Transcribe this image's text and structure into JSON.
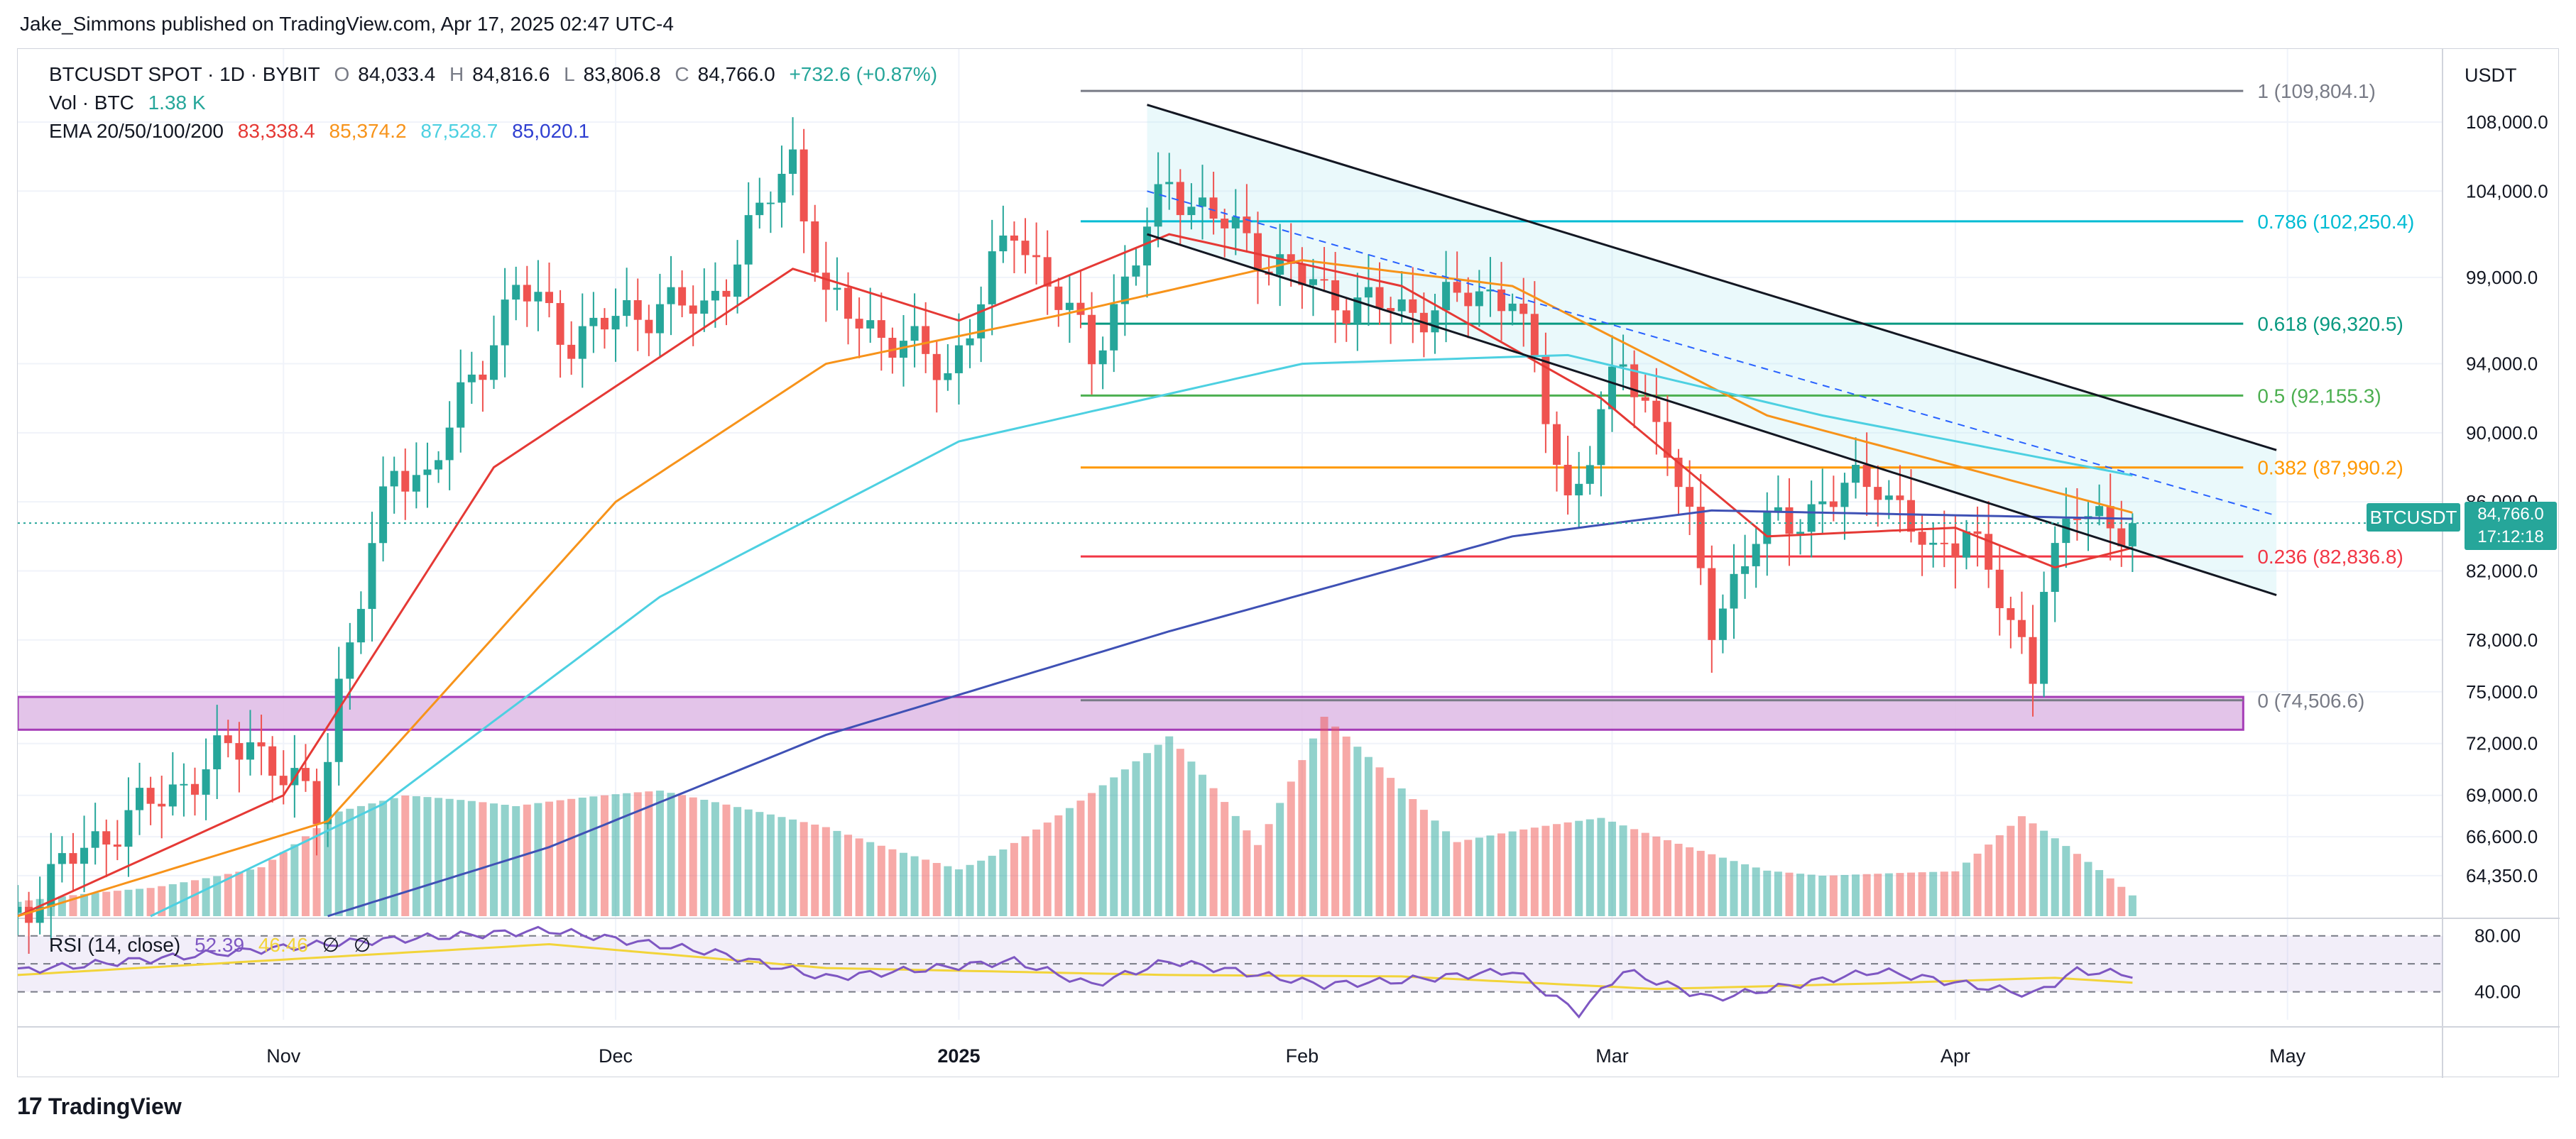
{
  "header": {
    "published": "Jake_Simmons published on TradingView.com, Apr 17, 2025 02:47 UTC-4"
  },
  "legend": {
    "symbol": "BTCUSDT SPOT · 1D · BYBIT",
    "o_label": "O",
    "o": "84,033.4",
    "h_label": "H",
    "h": "84,816.6",
    "l_label": "L",
    "l": "83,806.8",
    "c_label": "C",
    "c": "84,766.0",
    "change": "+732.6 (+0.87%)",
    "vol_label": "Vol · BTC",
    "vol": "1.38 K",
    "ema_label": "EMA 20/50/100/200",
    "ema20": "83,338.4",
    "ema50": "85,374.2",
    "ema100": "87,528.7",
    "ema200": "85,020.1",
    "rsi_label": "RSI (14, close)",
    "rsi": "52.39",
    "rsi_ma": "46.46",
    "rsi_na1": "∅",
    "rsi_na2": "∅"
  },
  "axis": {
    "currency": "USDT"
  },
  "price_badge": {
    "symbol": "BTCUSDT",
    "price": "84,766.0",
    "countdown": "17:12:18"
  },
  "brand": {
    "logo": "17",
    "name": "TradingView"
  },
  "colors": {
    "up": "#26a69a",
    "down": "#ef5350",
    "ema20": "#e53935",
    "ema50": "#f7931a",
    "ema100": "#4dd0e1",
    "ema200": "#3f51b5",
    "rsi": "#7e57c2",
    "rsi_ma": "#f2d43a",
    "zone": "#e1bee7",
    "zone_border": "#9c27b0"
  },
  "chart_data": {
    "type": "candlestick",
    "symbol": "BTCUSDT",
    "interval": "1D",
    "x_range": [
      "2024-10-08",
      "2025-05-15"
    ],
    "y_range": [
      62000,
      111000
    ],
    "y_ticks": [
      64350,
      66600,
      69000,
      72000,
      75000,
      78000,
      82000,
      86000,
      90000,
      94000,
      99000,
      104000,
      108000
    ],
    "y_tick_labels": [
      "64,350.0",
      "66,600.0",
      "69,000.0",
      "72,000.0",
      "75,000.0",
      "78,000.0",
      "82,000.0",
      "86,000.0",
      "90,000.0",
      "94,000.0",
      "99,000.0",
      "104,000.0",
      "108,000.0"
    ],
    "x_ticks": [
      "2024-11-01",
      "2024-12-01",
      "2025-01-01",
      "2025-02-01",
      "2025-03-01",
      "2025-04-01",
      "2025-05-01"
    ],
    "x_tick_labels": [
      "Nov",
      "Dec",
      "2025",
      "Feb",
      "Mar",
      "Apr",
      "May"
    ],
    "price_anchors": [
      [
        "2024-10-08",
        62200
      ],
      [
        "2024-10-14",
        66000
      ],
      [
        "2024-10-20",
        68500
      ],
      [
        "2024-10-29",
        72300
      ],
      [
        "2024-11-04",
        68000
      ],
      [
        "2024-11-06",
        75500
      ],
      [
        "2024-11-11",
        88000
      ],
      [
        "2024-11-14",
        87500
      ],
      [
        "2024-11-22",
        98500
      ],
      [
        "2024-11-27",
        95500
      ],
      [
        "2024-12-05",
        97500
      ],
      [
        "2024-12-09",
        97000
      ],
      [
        "2024-12-17",
        106000
      ],
      [
        "2024-12-20",
        97500
      ],
      [
        "2024-12-26",
        95500
      ],
      [
        "2024-12-31",
        93500
      ],
      [
        "2025-01-06",
        102000
      ],
      [
        "2025-01-13",
        94500
      ],
      [
        "2025-01-20",
        104500
      ],
      [
        "2025-01-27",
        101000
      ],
      [
        "2025-02-03",
        98000
      ],
      [
        "2025-02-10",
        97000
      ],
      [
        "2025-02-20",
        98300
      ],
      [
        "2025-02-25",
        86000
      ],
      [
        "2025-03-02",
        94000
      ],
      [
        "2025-03-06",
        89500
      ],
      [
        "2025-03-10",
        79000
      ],
      [
        "2025-03-14",
        84000
      ],
      [
        "2025-03-25",
        87500
      ],
      [
        "2025-03-30",
        82500
      ],
      [
        "2025-04-02",
        85000
      ],
      [
        "2025-04-06",
        78500
      ],
      [
        "2025-04-08",
        76500
      ],
      [
        "2025-04-09",
        82000
      ],
      [
        "2025-04-12",
        85200
      ],
      [
        "2025-04-17",
        84766
      ]
    ],
    "volume_anchors": [
      [
        "2024-10-08",
        8
      ],
      [
        "2024-10-30",
        28
      ],
      [
        "2024-11-06",
        55
      ],
      [
        "2024-11-12",
        60
      ],
      [
        "2024-11-22",
        52
      ],
      [
        "2024-12-05",
        60
      ],
      [
        "2024-12-20",
        48
      ],
      [
        "2025-01-01",
        30
      ],
      [
        "2025-01-20",
        95
      ],
      [
        "2025-01-28",
        35
      ],
      [
        "2025-02-03",
        95
      ],
      [
        "2025-02-15",
        35
      ],
      [
        "2025-02-28",
        50
      ],
      [
        "2025-03-15",
        28
      ],
      [
        "2025-04-01",
        25
      ],
      [
        "2025-04-07",
        52
      ],
      [
        "2025-04-17",
        10
      ]
    ],
    "ema": {
      "ema20": {
        "name": "EMA 20",
        "anchors": [
          [
            "2024-10-08",
            62000
          ],
          [
            "2024-11-01",
            69000
          ],
          [
            "2024-11-20",
            88000
          ],
          [
            "2024-12-17",
            99500
          ],
          [
            "2025-01-01",
            96500
          ],
          [
            "2025-01-20",
            101500
          ],
          [
            "2025-02-10",
            98500
          ],
          [
            "2025-02-28",
            92000
          ],
          [
            "2025-03-15",
            84000
          ],
          [
            "2025-04-01",
            84500
          ],
          [
            "2025-04-10",
            82200
          ],
          [
            "2025-04-17",
            83338
          ]
        ]
      },
      "ema50": {
        "name": "EMA 50",
        "anchors": [
          [
            "2024-10-08",
            62000
          ],
          [
            "2024-11-05",
            67500
          ],
          [
            "2024-12-01",
            86000
          ],
          [
            "2024-12-20",
            94000
          ],
          [
            "2025-01-10",
            96800
          ],
          [
            "2025-02-01",
            100000
          ],
          [
            "2025-02-20",
            98500
          ],
          [
            "2025-03-15",
            91000
          ],
          [
            "2025-04-17",
            85374
          ]
        ]
      },
      "ema100": {
        "name": "EMA 100",
        "anchors": [
          [
            "2024-10-20",
            62000
          ],
          [
            "2024-11-10",
            68500
          ],
          [
            "2024-12-05",
            80500
          ],
          [
            "2025-01-01",
            89500
          ],
          [
            "2025-02-01",
            94000
          ],
          [
            "2025-02-25",
            94500
          ],
          [
            "2025-03-20",
            91000
          ],
          [
            "2025-04-17",
            87529
          ]
        ]
      },
      "ema200": {
        "name": "EMA 200",
        "anchors": [
          [
            "2024-11-05",
            62000
          ],
          [
            "2024-11-25",
            66000
          ],
          [
            "2024-12-20",
            72500
          ],
          [
            "2025-01-20",
            78500
          ],
          [
            "2025-02-20",
            84000
          ],
          [
            "2025-03-10",
            85500
          ],
          [
            "2025-04-17",
            85020
          ]
        ]
      }
    },
    "fibonacci": [
      {
        "level": "1",
        "price": 109804.1,
        "label": "1 (109,804.1)",
        "color": "#787b86"
      },
      {
        "level": "0.786",
        "price": 102250.4,
        "label": "0.786 (102,250.4)",
        "color": "#00bcd4"
      },
      {
        "level": "0.618",
        "price": 96320.5,
        "label": "0.618 (96,320.5)",
        "color": "#089981"
      },
      {
        "level": "0.5",
        "price": 92155.3,
        "label": "0.5 (92,155.3)",
        "color": "#4caf50"
      },
      {
        "level": "0.382",
        "price": 87990.2,
        "label": "0.382 (87,990.2)",
        "color": "#ff9800"
      },
      {
        "level": "0.236",
        "price": 82836.8,
        "label": "0.236 (82,836.8)",
        "color": "#f23645"
      },
      {
        "level": "0",
        "price": 74506.6,
        "label": "0 (74,506.6)",
        "color": "#787b86"
      }
    ],
    "fib_range": [
      "2025-01-12",
      "2025-04-27"
    ],
    "support_zone": {
      "x_range": [
        "2024-10-08",
        "2025-04-27"
      ],
      "price_range": [
        72800,
        74700
      ]
    },
    "channel": {
      "upper": [
        [
          "2025-01-18",
          109000
        ],
        [
          "2025-04-30",
          89000
        ]
      ],
      "lower": [
        [
          "2025-01-18",
          101500
        ],
        [
          "2025-04-30",
          80600
        ]
      ],
      "mid_dashed": [
        [
          "2025-01-18",
          104000
        ],
        [
          "2025-04-30",
          85200
        ]
      ]
    },
    "rsi": {
      "upper": 80,
      "lower": 40,
      "y_range": [
        20,
        90
      ],
      "value": 52.39,
      "ma": 46.46,
      "anchors": [
        [
          "2024-10-08",
          55
        ],
        [
          "2024-11-06",
          75
        ],
        [
          "2024-11-25",
          84
        ],
        [
          "2024-12-10",
          68
        ],
        [
          "2024-12-20",
          50
        ],
        [
          "2025-01-06",
          62
        ],
        [
          "2025-01-13",
          45
        ],
        [
          "2025-01-20",
          62
        ],
        [
          "2025-02-03",
          45
        ],
        [
          "2025-02-10",
          48
        ],
        [
          "2025-02-20",
          55
        ],
        [
          "2025-02-26",
          25
        ],
        [
          "2025-03-02",
          55
        ],
        [
          "2025-03-10",
          35
        ],
        [
          "2025-03-25",
          55
        ],
        [
          "2025-04-08",
          38
        ],
        [
          "2025-04-12",
          55
        ],
        [
          "2025-04-17",
          52.39
        ]
      ],
      "ma_anchors": [
        [
          "2024-10-08",
          52
        ],
        [
          "2024-11-25",
          74
        ],
        [
          "2024-12-20",
          57
        ],
        [
          "2025-01-20",
          52
        ],
        [
          "2025-02-10",
          51
        ],
        [
          "2025-03-05",
          42
        ],
        [
          "2025-03-25",
          46
        ],
        [
          "2025-04-10",
          50
        ],
        [
          "2025-04-17",
          46.46
        ]
      ]
    }
  }
}
